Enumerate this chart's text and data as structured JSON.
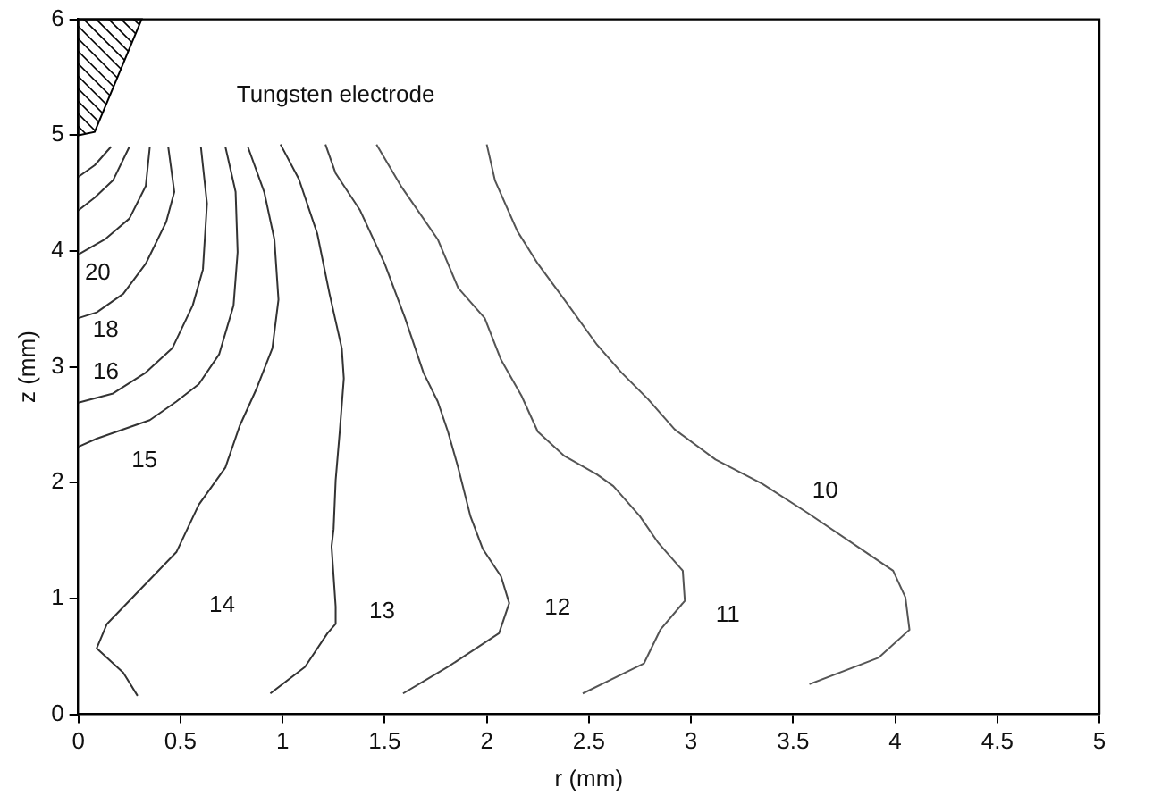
{
  "chart_data": {
    "type": "line",
    "xlabel": "r (mm)",
    "ylabel": "z (mm)",
    "xlim": [
      0,
      5
    ],
    "xticks": [
      0,
      0.5,
      1,
      1.5,
      2,
      2.5,
      3,
      3.5,
      4,
      4.5,
      5
    ],
    "ylim": [
      0,
      6
    ],
    "yticks": [
      0,
      1,
      2,
      3,
      4,
      5,
      6
    ],
    "annotations": [
      "Tungsten electrode"
    ],
    "series": [
      {
        "name": "10",
        "color": "#555555",
        "x": [
          2.0,
          2.04,
          2.15,
          2.25,
          2.38,
          2.54,
          2.66,
          2.79,
          2.92,
          3.12,
          3.35,
          3.57,
          3.83,
          3.99,
          4.05,
          4.07,
          3.92,
          3.58
        ],
        "values": [
          4.92,
          4.61,
          4.17,
          3.89,
          3.58,
          3.19,
          2.95,
          2.72,
          2.46,
          2.2,
          1.99,
          1.74,
          1.43,
          1.24,
          1.01,
          0.73,
          0.49,
          0.26
        ]
      },
      {
        "name": "11",
        "color": "#555555",
        "x": [
          1.46,
          1.58,
          1.76,
          1.86,
          1.99,
          2.07,
          2.17,
          2.25,
          2.38,
          2.54,
          2.62,
          2.75,
          2.84,
          2.96,
          2.97,
          2.85,
          2.77,
          2.47
        ],
        "values": [
          4.92,
          4.56,
          4.1,
          3.68,
          3.42,
          3.06,
          2.75,
          2.44,
          2.23,
          2.07,
          1.97,
          1.71,
          1.48,
          1.24,
          0.98,
          0.73,
          0.44,
          0.18
        ]
      },
      {
        "name": "12",
        "color": "#444444",
        "x": [
          1.21,
          1.26,
          1.38,
          1.5,
          1.6,
          1.69,
          1.76,
          1.81,
          1.86,
          1.92,
          1.98,
          2.07,
          2.11,
          2.06,
          1.81,
          1.59
        ],
        "values": [
          4.92,
          4.67,
          4.35,
          3.89,
          3.42,
          2.95,
          2.7,
          2.44,
          2.13,
          1.71,
          1.43,
          1.19,
          0.96,
          0.7,
          0.41,
          0.18
        ]
      },
      {
        "name": "13",
        "color": "#333333",
        "x": [
          0.99,
          1.08,
          1.17,
          1.23,
          1.29,
          1.3,
          1.28,
          1.26,
          1.25,
          1.24,
          1.26,
          1.26,
          1.22,
          1.11,
          0.94
        ],
        "values": [
          4.92,
          4.62,
          4.15,
          3.63,
          3.16,
          2.9,
          2.44,
          2.02,
          1.6,
          1.45,
          0.93,
          0.78,
          0.7,
          0.41,
          0.18
        ]
      },
      {
        "name": "14",
        "color": "#333333",
        "x": [
          0.83,
          0.91,
          0.96,
          0.98,
          0.95,
          0.87,
          0.79,
          0.72,
          0.59,
          0.48,
          0.31,
          0.14,
          0.09,
          0.22,
          0.29
        ],
        "values": [
          4.9,
          4.51,
          4.1,
          3.58,
          3.16,
          2.8,
          2.49,
          2.13,
          1.81,
          1.4,
          1.09,
          0.78,
          0.57,
          0.36,
          0.16
        ]
      },
      {
        "name": "15",
        "color": "#333333",
        "x": [
          0.72,
          0.77,
          0.78,
          0.76,
          0.69,
          0.59,
          0.48,
          0.35,
          0.09,
          0
        ],
        "values": [
          4.9,
          4.51,
          3.99,
          3.53,
          3.11,
          2.85,
          2.7,
          2.54,
          2.38,
          2.31
        ]
      },
      {
        "name": "16",
        "color": "#333333",
        "x": [
          0.6,
          0.63,
          0.61,
          0.56,
          0.46,
          0.33,
          0.17,
          0
        ],
        "values": [
          4.9,
          4.41,
          3.84,
          3.53,
          3.16,
          2.95,
          2.77,
          2.69
        ]
      },
      {
        "name": "18",
        "color": "#333333",
        "x": [
          0.44,
          0.47,
          0.43,
          0.33,
          0.22,
          0.09,
          0
        ],
        "values": [
          4.9,
          4.51,
          4.25,
          3.89,
          3.63,
          3.47,
          3.42
        ]
      },
      {
        "name": "20",
        "color": "#333333",
        "x": [
          0.35,
          0.33,
          0.25,
          0.13,
          0
        ],
        "values": [
          4.9,
          4.56,
          4.28,
          4.1,
          3.97
        ]
      },
      {
        "color": "#333333",
        "x": [
          0.25,
          0.17,
          0.08,
          0
        ],
        "values": [
          4.9,
          4.61,
          4.46,
          4.35
        ]
      },
      {
        "color": "#333333",
        "x": [
          0.16,
          0.08,
          0
        ],
        "values": [
          4.9,
          4.74,
          4.64
        ]
      }
    ]
  }
}
